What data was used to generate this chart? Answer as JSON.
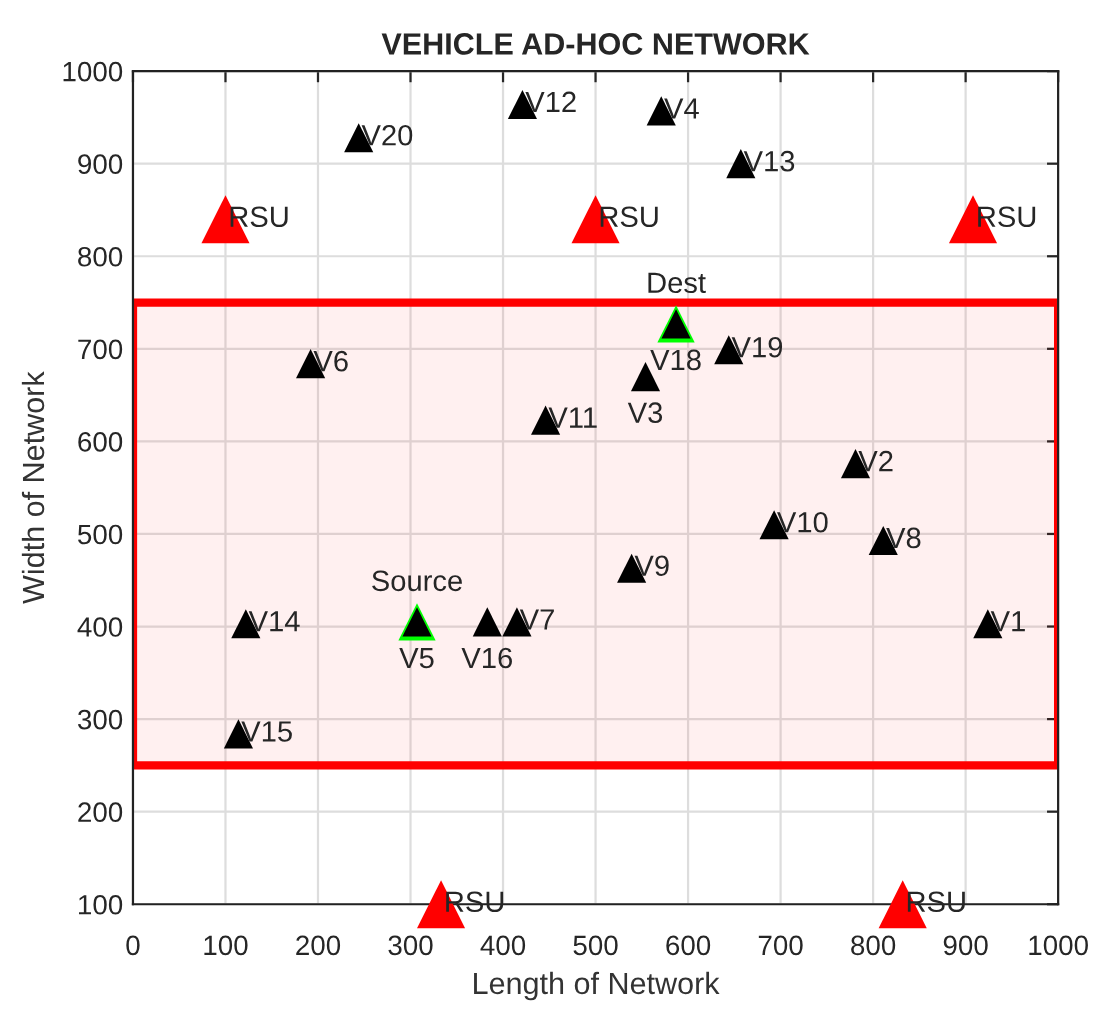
{
  "chart_data": {
    "type": "scatter",
    "title": "VEHICLE AD-HOC NETWORK",
    "xlabel": "Length of Network",
    "ylabel": "Width of Network",
    "xlim": [
      0,
      1000
    ],
    "ylim": [
      100,
      1000
    ],
    "xticks": [
      0,
      100,
      200,
      300,
      400,
      500,
      600,
      700,
      800,
      900,
      1000
    ],
    "yticks": [
      100,
      200,
      300,
      400,
      500,
      600,
      700,
      800,
      900,
      1000
    ],
    "grid": true,
    "legend": false,
    "marker": "triangle",
    "bands": [
      {
        "axis": "y",
        "from": 250,
        "to": 750,
        "color": "#ff0000"
      }
    ],
    "series": [
      {
        "color": "#000000",
        "x": [
          924,
          781,
          554,
          571,
          307,
          192,
          415,
          811,
          539,
          693,
          446,
          421,
          657,
          122,
          114,
          383,
          587,
          644,
          244
        ],
        "values": [
          403,
          576,
          670,
          957,
          405,
          684,
          405,
          493,
          463,
          510,
          623,
          964,
          900,
          403,
          284,
          405,
          727,
          699,
          928
        ],
        "value_labels": [
          "V1",
          "V2",
          "V3",
          "V4",
          "V5",
          "V6",
          "V7",
          "V8",
          "V9",
          "V10",
          "V11",
          "V12",
          "V13",
          "V14",
          "V15",
          "V16",
          "V18",
          "V19",
          "V20"
        ]
      },
      {
        "color": "#00ff00",
        "x": [
          307,
          587
        ],
        "values": [
          405,
          727
        ],
        "value_labels": [
          "Source",
          "Dest"
        ]
      },
      {
        "color": "#ff0000",
        "x": [
          100,
          500,
          908,
          333,
          832
        ],
        "values": [
          840,
          840,
          840,
          100,
          100
        ],
        "value_labels": [
          "RSU",
          "RSU",
          "RSU",
          "RSU",
          "RSU"
        ]
      }
    ]
  }
}
